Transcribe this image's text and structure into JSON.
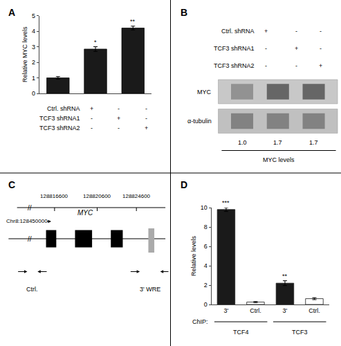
{
  "chart_data": [
    {
      "type": "bar",
      "title": "A",
      "categories": [
        null,
        null,
        null
      ],
      "values": [
        1.0,
        2.85,
        4.2
      ],
      "errors": [
        0.08,
        0.15,
        0.12
      ],
      "stars": [
        null,
        "*",
        "**"
      ],
      "color": "#1a1a1a",
      "ylabel": "Relative MYC levels",
      "ylim": [
        0,
        5
      ],
      "yticks": [
        0,
        1,
        2,
        3,
        4,
        5
      ],
      "grid": false,
      "table": {
        "rows": [
          "Ctrl. shRNA",
          "TCF3 shRNA1",
          "TCF3 shRNA2"
        ],
        "cells": [
          [
            "+",
            "-",
            "-"
          ],
          [
            "-",
            "+",
            "-"
          ],
          [
            "-",
            "-",
            "+"
          ]
        ]
      }
    },
    {
      "type": "blot",
      "title": "B",
      "table": {
        "rows": [
          "Ctrl. shRNA",
          "TCF3 shRNA1",
          "TCF3 shRNA2"
        ],
        "cells": [
          [
            "+",
            "-",
            "-"
          ],
          [
            "-",
            "+",
            "-"
          ],
          [
            "-",
            "-",
            "+"
          ]
        ]
      },
      "bands": [
        {
          "name": "MYC",
          "colors": [
            "#888888",
            "#555555",
            "#555555"
          ]
        },
        {
          "name": "α-tubulin",
          "colors": [
            "#777777",
            "#777777",
            "#777777"
          ]
        }
      ],
      "lane_labels": [
        "1.0",
        "1.7",
        "1.7"
      ],
      "xlabel": "MYC levels"
    },
    {
      "type": "diagram",
      "title": "C",
      "chr_label": "Chr8:128450000",
      "positions": [
        "128816600",
        "128820600",
        "128824600"
      ],
      "break_mark": "//",
      "gene": "MYC",
      "regions": [
        "Ctrl.",
        "3' WRE"
      ],
      "color": "#aaaaaa"
    },
    {
      "type": "bar",
      "title": "D",
      "categories": [
        "3'",
        "Ctrl.",
        "3'",
        "Ctrl."
      ],
      "groups": [
        "TCF4",
        "TCF4",
        "TCF3",
        "TCF3"
      ],
      "group_title": "ChIP:",
      "values": [
        9.8,
        0.25,
        2.2,
        0.6
      ],
      "errors": [
        0.2,
        0.05,
        0.25,
        0.1
      ],
      "stars": [
        "***",
        null,
        "**",
        null
      ],
      "colors": [
        "#1a1a1a",
        "#ffffff",
        "#1a1a1a",
        "#ffffff"
      ],
      "edge_colors": [
        "#1a1a1a",
        "#1a1a1a",
        "#1a1a1a",
        "#1a1a1a"
      ],
      "ylabel": "Relative levels",
      "ylim": [
        0,
        10
      ],
      "yticks": [
        0,
        2,
        4,
        6,
        8,
        10
      ],
      "grid": false
    }
  ]
}
